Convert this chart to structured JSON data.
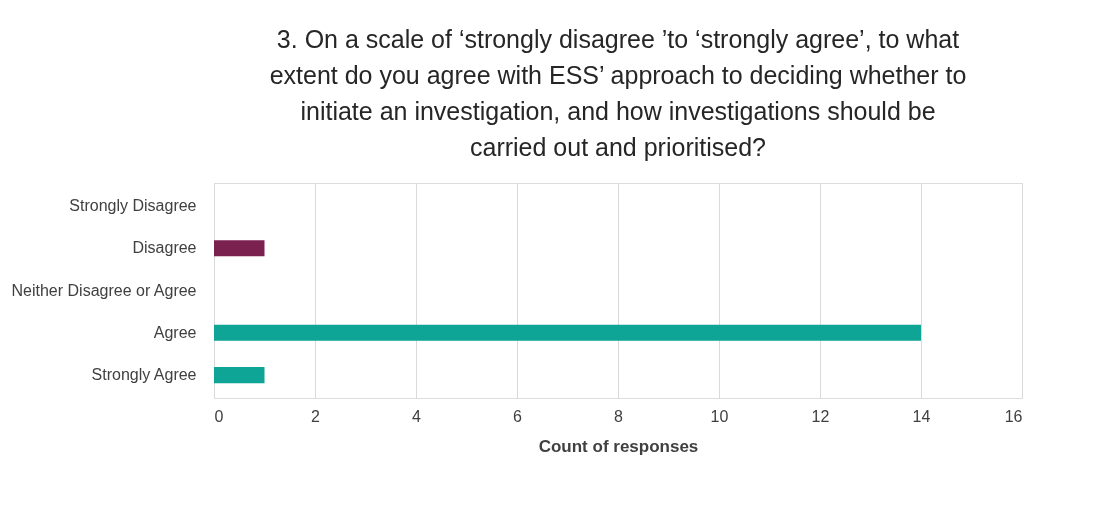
{
  "chart_data": {
    "type": "bar",
    "orientation": "horizontal",
    "title": "3. On a scale of ‘strongly disagree ’to ‘strongly agree’, to what extent do you agree with ESS’ approach to deciding whether to initiate an investigation, and how investigations should be carried out and prioritised?",
    "xlabel": "Count of responses",
    "categories": [
      "Strongly Disagree",
      "Disagree",
      "Neither Disagree or Agree",
      "Agree",
      "Strongly Agree"
    ],
    "values": [
      0,
      1,
      0,
      14,
      1
    ],
    "colors": [
      "#7b2150",
      "#7b2150",
      "#0fa596",
      "#0fa596",
      "#0fa596"
    ],
    "xlim": [
      0,
      16
    ],
    "xticks": [
      0,
      2,
      4,
      6,
      8,
      10,
      12,
      14,
      16
    ],
    "grid": "x",
    "legend": false
  }
}
